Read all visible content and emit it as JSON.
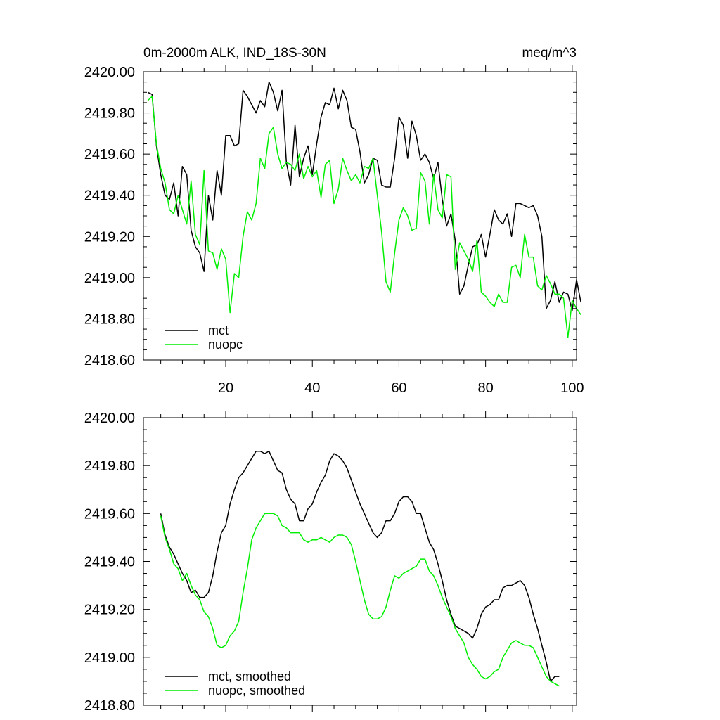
{
  "colors": {
    "mct": "#000000",
    "nuopc": "#00ee00",
    "frame": "#000000",
    "background": "#ffffff"
  },
  "chart_data": [
    {
      "type": "line",
      "title": "0m-2000m ALK, IND_18S-30N",
      "units": "meq/m^3",
      "xlim": [
        1,
        101
      ],
      "ylim": [
        2418.6,
        2420.0
      ],
      "xticks": [
        20,
        40,
        60,
        80,
        100
      ],
      "xtick_labels": [
        "20",
        "40",
        "60",
        "80",
        "100"
      ],
      "yticks": [
        2418.6,
        2418.8,
        2419.0,
        2419.2,
        2419.4,
        2419.6,
        2419.8,
        2420.0
      ],
      "ytick_labels": [
        "2418.60",
        "2418.80",
        "2419.00",
        "2419.20",
        "2419.40",
        "2419.60",
        "2419.80",
        "2420.00"
      ],
      "legend_position": "bottom-left",
      "x_start": 2,
      "series": [
        {
          "name": "mct",
          "color": "#000000",
          "values": [
            2419.9,
            2419.89,
            2419.64,
            2419.5,
            2419.4,
            2419.38,
            2419.46,
            2419.3,
            2419.54,
            2419.5,
            2419.23,
            2419.15,
            2419.12,
            2419.03,
            2419.4,
            2419.28,
            2419.52,
            2419.4,
            2419.69,
            2419.69,
            2419.64,
            2419.65,
            2419.91,
            2419.88,
            2419.84,
            2419.8,
            2419.86,
            2419.83,
            2419.95,
            2419.9,
            2419.81,
            2419.91,
            2419.56,
            2419.45,
            2419.74,
            2419.49,
            2419.58,
            2419.64,
            2419.5,
            2419.65,
            2419.78,
            2419.85,
            2419.84,
            2419.92,
            2419.82,
            2419.91,
            2419.86,
            2419.73,
            2419.72,
            2419.61,
            2419.46,
            2419.5,
            2419.58,
            2419.57,
            2419.45,
            2419.44,
            2419.44,
            2419.58,
            2419.78,
            2419.74,
            2419.58,
            2419.76,
            2419.69,
            2419.57,
            2419.6,
            2419.56,
            2419.48,
            2419.56,
            2419.38,
            2419.25,
            2419.31,
            2419.18,
            2418.92,
            2418.96,
            2419.06,
            2419.15,
            2419.16,
            2419.21,
            2419.1,
            2419.21,
            2419.33,
            2419.28,
            2419.26,
            2419.31,
            2419.2,
            2419.36,
            2419.36,
            2419.35,
            2419.34,
            2419.35,
            2419.3,
            2419.2,
            2418.85,
            2418.89,
            2418.98,
            2418.88,
            2418.93,
            2418.92,
            2418.84,
            2418.99,
            2418.88
          ]
        },
        {
          "name": "nuopc",
          "color": "#00ee00",
          "values": [
            2419.86,
            2419.88,
            2419.65,
            2419.53,
            2419.46,
            2419.33,
            2419.31,
            2419.4,
            2419.33,
            2419.26,
            2419.47,
            2419.21,
            2419.16,
            2419.52,
            2419.13,
            2419.12,
            2419.04,
            2419.14,
            2419.09,
            2418.83,
            2419.02,
            2419.0,
            2419.2,
            2419.32,
            2419.28,
            2419.36,
            2419.58,
            2419.53,
            2419.7,
            2419.73,
            2419.6,
            2419.53,
            2419.56,
            2419.55,
            2419.52,
            2419.6,
            2419.48,
            2419.54,
            2419.49,
            2419.52,
            2419.39,
            2419.55,
            2419.57,
            2419.36,
            2419.43,
            2419.58,
            2419.52,
            2419.47,
            2419.5,
            2419.46,
            2419.54,
            2419.53,
            2419.58,
            2419.4,
            2419.22,
            2418.98,
            2418.93,
            2419.12,
            2419.28,
            2419.34,
            2419.3,
            2419.23,
            2419.24,
            2419.51,
            2419.47,
            2419.26,
            2419.5,
            2419.33,
            2419.29,
            2419.5,
            2419.49,
            2419.04,
            2419.17,
            2419.13,
            2419.09,
            2419.03,
            2419.18,
            2418.93,
            2418.91,
            2418.88,
            2418.86,
            2418.92,
            2418.88,
            2418.88,
            2419.05,
            2419.06,
            2419.0,
            2419.21,
            2419.1,
            2419.1,
            2418.96,
            2418.94,
            2419.01,
            2418.97,
            2418.92,
            2418.92,
            2418.9,
            2418.71,
            2418.89,
            2418.85,
            2418.82
          ]
        }
      ]
    },
    {
      "type": "line",
      "title": "",
      "units": "",
      "xlim": [
        1,
        101
      ],
      "ylim": [
        2418.8,
        2420.0
      ],
      "xticks": [
        20,
        40,
        60,
        80,
        100
      ],
      "xtick_labels": [],
      "yticks": [
        2418.8,
        2419.0,
        2419.2,
        2419.4,
        2419.6,
        2419.8,
        2420.0
      ],
      "ytick_labels": [
        "2418.80",
        "2419.00",
        "2419.20",
        "2419.40",
        "2419.60",
        "2419.80",
        "2420.00"
      ],
      "legend_position": "bottom-left",
      "x_start": 5,
      "series": [
        {
          "name": "mct, smoothed",
          "color": "#000000",
          "values": [
            2419.6,
            2419.51,
            2419.46,
            2419.43,
            2419.39,
            2419.35,
            2419.32,
            2419.27,
            2419.28,
            2419.25,
            2419.25,
            2419.27,
            2419.34,
            2419.44,
            2419.52,
            2419.55,
            2419.64,
            2419.7,
            2419.75,
            2419.77,
            2419.8,
            2419.83,
            2419.86,
            2419.86,
            2419.85,
            2419.86,
            2419.82,
            2419.78,
            2419.77,
            2419.7,
            2419.66,
            2419.64,
            2419.57,
            2419.57,
            2419.62,
            2419.64,
            2419.69,
            2419.73,
            2419.76,
            2419.82,
            2419.85,
            2419.84,
            2419.82,
            2419.79,
            2419.74,
            2419.69,
            2419.64,
            2419.6,
            2419.56,
            2419.52,
            2419.5,
            2419.52,
            2419.57,
            2419.57,
            2419.6,
            2419.65,
            2419.67,
            2419.67,
            2419.65,
            2419.6,
            2419.6,
            2419.54,
            2419.48,
            2419.45,
            2419.39,
            2419.32,
            2419.24,
            2419.18,
            2419.13,
            2419.12,
            2419.11,
            2419.1,
            2419.08,
            2419.12,
            2419.18,
            2419.21,
            2419.22,
            2419.24,
            2419.24,
            2419.29,
            2419.3,
            2419.3,
            2419.31,
            2419.32,
            2419.3,
            2419.25,
            2419.18,
            2419.12,
            2419.05,
            2418.98,
            2418.9,
            2418.92,
            2418.92
          ]
        },
        {
          "name": "nuopc, smoothed",
          "color": "#00ee00",
          "values": [
            2419.59,
            2419.5,
            2419.45,
            2419.39,
            2419.37,
            2419.32,
            2419.35,
            2419.3,
            2419.26,
            2419.24,
            2419.19,
            2419.17,
            2419.12,
            2419.05,
            2419.04,
            2419.05,
            2419.09,
            2419.11,
            2419.15,
            2419.27,
            2419.37,
            2419.49,
            2419.54,
            2419.57,
            2419.6,
            2419.6,
            2419.6,
            2419.59,
            2419.55,
            2419.54,
            2419.52,
            2419.52,
            2419.52,
            2419.49,
            2419.48,
            2419.49,
            2419.49,
            2419.5,
            2419.49,
            2419.48,
            2419.5,
            2419.51,
            2419.51,
            2419.5,
            2419.47,
            2419.4,
            2419.32,
            2419.24,
            2419.18,
            2419.16,
            2419.16,
            2419.17,
            2419.21,
            2419.28,
            2419.34,
            2419.33,
            2419.35,
            2419.36,
            2419.37,
            2419.38,
            2419.41,
            2419.41,
            2419.36,
            2419.34,
            2419.3,
            2419.25,
            2419.21,
            2419.17,
            2419.12,
            2419.09,
            2419.06,
            2419.0,
            2418.97,
            2418.95,
            2418.92,
            2418.91,
            2418.92,
            2418.94,
            2418.95,
            2419.0,
            2419.03,
            2419.06,
            2419.07,
            2419.06,
            2419.05,
            2419.05,
            2419.04,
            2419.0,
            2418.96,
            2418.92,
            2418.9,
            2418.89,
            2418.88
          ]
        }
      ]
    }
  ]
}
